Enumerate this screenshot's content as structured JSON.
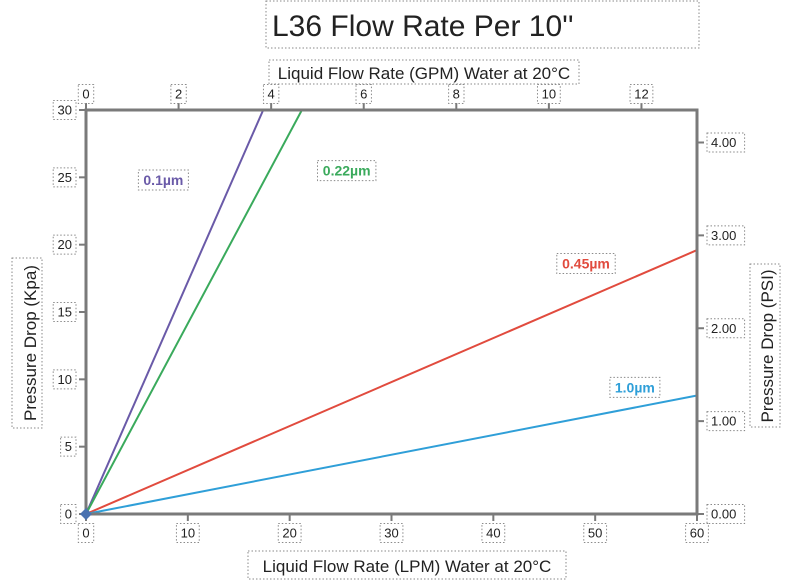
{
  "chart_data": {
    "type": "line",
    "title": "L36 Flow Rate Per 10''",
    "xlabel_bottom": "Liquid Flow Rate (LPM) Water at 20°C",
    "xlabel_top": "Liquid Flow Rate (GPM) Water at 20°C",
    "ylabel_left": "Pressure Drop (Kpa)",
    "ylabel_right": "Pressure Drop (PSI)",
    "x_bottom": {
      "lim": [
        0,
        60
      ],
      "ticks": [
        "0",
        "10",
        "20",
        "30",
        "40",
        "50",
        "60"
      ]
    },
    "x_top": {
      "lim": [
        0,
        13.2
      ],
      "ticks": [
        "0",
        "2",
        "4",
        "6",
        "8",
        "10",
        "12"
      ]
    },
    "y_left": {
      "lim": [
        0,
        30
      ],
      "ticks": [
        "0",
        "5",
        "10",
        "15",
        "20",
        "25",
        "30"
      ]
    },
    "y_right": {
      "lim": [
        0,
        4.35
      ],
      "ticks": [
        "0.00",
        "1.00",
        "2.00",
        "3.00",
        "4.00"
      ]
    },
    "grid": false,
    "series": [
      {
        "name": "0.1µm",
        "color": "#6a5aa8",
        "x": [
          0,
          17.4
        ],
        "y": [
          0,
          30
        ]
      },
      {
        "name": "0.22µm",
        "color": "#3aaa5c",
        "x": [
          0,
          21.2
        ],
        "y": [
          0,
          30
        ]
      },
      {
        "name": "0.45µm",
        "color": "#e14b3e",
        "x": [
          0,
          60
        ],
        "y": [
          0,
          19.6
        ]
      },
      {
        "name": "1.0µm",
        "color": "#2f9fd8",
        "x": [
          0,
          60
        ],
        "y": [
          0,
          8.8
        ]
      }
    ]
  }
}
